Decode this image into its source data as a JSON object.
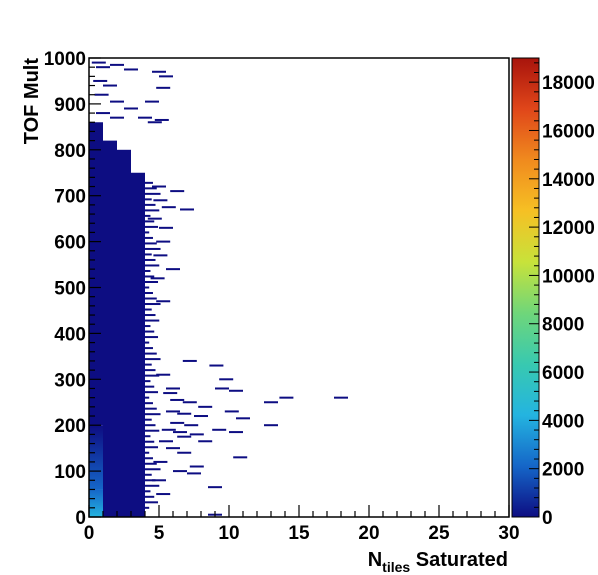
{
  "chart_data": {
    "type": "heatmap",
    "title": "",
    "xlabel": {
      "main": "N",
      "sub": "tiles",
      "rest": " Saturated"
    },
    "ylabel": "TOF Mult",
    "xlim": [
      0,
      30
    ],
    "ylim": [
      0,
      1000
    ],
    "x_ticks": [
      "0",
      "5",
      "10",
      "15",
      "20",
      "25",
      "30"
    ],
    "y_ticks": [
      "0",
      "100",
      "200",
      "300",
      "400",
      "500",
      "600",
      "700",
      "800",
      "900",
      "1000"
    ],
    "colorbar": {
      "range": [
        0,
        19000
      ],
      "ticks": [
        "0",
        "2000",
        "4000",
        "6000",
        "8000",
        "10000",
        "12000",
        "14000",
        "16000",
        "18000"
      ],
      "palette": [
        "#0d0d82",
        "#1566c8",
        "#24b4e0",
        "#38c9b0",
        "#6fd67a",
        "#c8e23a",
        "#f6c024",
        "#f08a1e",
        "#e0461a",
        "#a8140c"
      ]
    },
    "column_bands": [
      {
        "x": [
          0,
          1
        ],
        "y": [
          0,
          60
        ],
        "density": "very high"
      },
      {
        "x": [
          0,
          1
        ],
        "y": [
          60,
          200
        ],
        "density": "high"
      },
      {
        "x": [
          0,
          1
        ],
        "y": [
          200,
          860
        ],
        "density": "low"
      },
      {
        "x": [
          1,
          2
        ],
        "y": [
          0,
          820
        ],
        "density": "low"
      },
      {
        "x": [
          2,
          3
        ],
        "y": [
          0,
          800
        ],
        "density": "low"
      },
      {
        "x": [
          3,
          4
        ],
        "y": [
          0,
          750
        ],
        "density": "low"
      }
    ],
    "sparse_bins": [
      [
        0.2,
        990
      ],
      [
        0.5,
        980
      ],
      [
        1.5,
        985
      ],
      [
        2.5,
        975
      ],
      [
        4.5,
        970
      ],
      [
        5,
        960
      ],
      [
        0.3,
        950
      ],
      [
        1.0,
        940
      ],
      [
        4.8,
        935
      ],
      [
        0.4,
        920
      ],
      [
        1.5,
        905
      ],
      [
        4.0,
        905
      ],
      [
        2.5,
        890
      ],
      [
        0.5,
        880
      ],
      [
        1.5,
        870
      ],
      [
        3.5,
        870
      ],
      [
        4.2,
        860
      ],
      [
        4.7,
        865
      ],
      [
        4.5,
        720
      ],
      [
        5.8,
        710
      ],
      [
        4.6,
        690
      ],
      [
        5.2,
        675
      ],
      [
        6.5,
        670
      ],
      [
        4.2,
        650
      ],
      [
        5.0,
        630
      ],
      [
        4.8,
        600
      ],
      [
        4.6,
        570
      ],
      [
        5.5,
        540
      ],
      [
        4.4,
        520
      ],
      [
        4.8,
        470
      ],
      [
        6.7,
        340
      ],
      [
        8.6,
        330
      ],
      [
        9.3,
        300
      ],
      [
        4.8,
        310
      ],
      [
        5.5,
        280
      ],
      [
        5.3,
        270
      ],
      [
        9.0,
        280
      ],
      [
        10.0,
        275
      ],
      [
        5.8,
        255
      ],
      [
        6.7,
        250
      ],
      [
        12.5,
        250
      ],
      [
        13.6,
        260
      ],
      [
        17.5,
        260
      ],
      [
        7.8,
        240
      ],
      [
        9.7,
        230
      ],
      [
        5.5,
        230
      ],
      [
        6.3,
        225
      ],
      [
        7.5,
        220
      ],
      [
        10.5,
        215
      ],
      [
        5.8,
        205
      ],
      [
        6.8,
        200
      ],
      [
        12.5,
        200
      ],
      [
        5.2,
        190
      ],
      [
        6.0,
        185
      ],
      [
        8.8,
        190
      ],
      [
        10.0,
        185
      ],
      [
        7.2,
        180
      ],
      [
        6.3,
        175
      ],
      [
        5.0,
        165
      ],
      [
        7.8,
        165
      ],
      [
        5.5,
        150
      ],
      [
        6.3,
        140
      ],
      [
        10.3,
        130
      ],
      [
        4.6,
        120
      ],
      [
        7.2,
        110
      ],
      [
        6.0,
        100
      ],
      [
        7.0,
        95
      ],
      [
        4.5,
        80
      ],
      [
        8.5,
        65
      ],
      [
        4.8,
        50
      ],
      [
        8.5,
        5
      ]
    ]
  }
}
